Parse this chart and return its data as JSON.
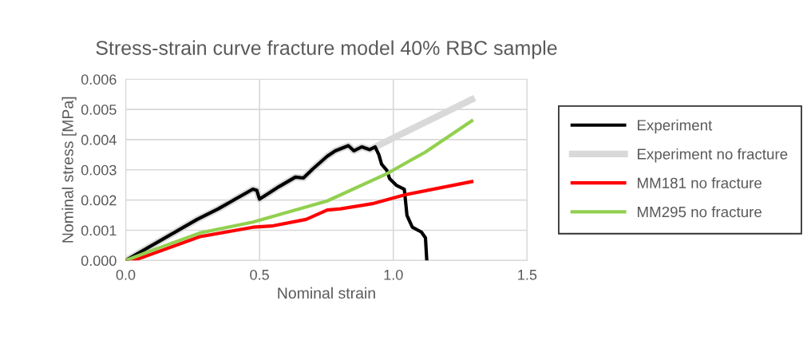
{
  "chart_data": {
    "type": "line",
    "title": "Stress-strain curve fracture model 40% RBC sample",
    "xlabel": "Nominal strain",
    "ylabel": "Nominal stress [MPa]",
    "xlim": [
      0,
      1.5
    ],
    "xticks": [
      {
        "value": 0,
        "label": "0.0"
      },
      0.5,
      {
        "value": 1,
        "label": "1.0"
      },
      1.5
    ],
    "ylim": [
      0,
      0.006
    ],
    "yticks": [
      {
        "value": 0,
        "label": "0.000"
      },
      0.001,
      0.002,
      0.003,
      0.004,
      0.005,
      0.006
    ],
    "grid": true,
    "legend": "right",
    "marker": "none",
    "line_style": "solid",
    "series": [
      {
        "name": "Experiment no fracture",
        "color": "#d9d9d9",
        "x": [
          0,
          0.267,
          0.346,
          0.475,
          0.49,
          0.5,
          0.574,
          0.634,
          0.664,
          0.698,
          0.753,
          0.783,
          0.832,
          0.853,
          0.882,
          0.912,
          1.1,
          1.293
        ],
        "values": [
          0,
          0.00136,
          0.00171,
          0.00236,
          0.00232,
          0.00203,
          0.00245,
          0.00276,
          0.00273,
          0.00302,
          0.00345,
          0.00363,
          0.0038,
          0.00363,
          0.00376,
          0.00367,
          0.00449,
          0.00533
        ]
      },
      {
        "name": "Experiment",
        "color": "#000000",
        "x": [
          0,
          0.267,
          0.346,
          0.475,
          0.49,
          0.5,
          0.574,
          0.634,
          0.664,
          0.698,
          0.753,
          0.783,
          0.832,
          0.853,
          0.882,
          0.912,
          0.932,
          0.946,
          0.956,
          0.976,
          0.986,
          1.011,
          1.041,
          1.051,
          1.071,
          1.105,
          1.12,
          1.125
        ],
        "values": [
          0,
          0.00136,
          0.00171,
          0.00236,
          0.00232,
          0.00203,
          0.00245,
          0.00276,
          0.00273,
          0.00302,
          0.00345,
          0.00363,
          0.0038,
          0.00363,
          0.00376,
          0.00367,
          0.00376,
          0.0035,
          0.00319,
          0.00298,
          0.00271,
          0.00249,
          0.00236,
          0.00149,
          0.0011,
          0.00094,
          0.00075,
          0
        ]
      },
      {
        "name": "MM181 no fracture",
        "color": "#ff0000",
        "x": [
          0,
          0.03,
          0.277,
          0.475,
          0.545,
          0.674,
          0.753,
          0.803,
          0.922,
          1.041,
          1.293
        ],
        "values": [
          0,
          0,
          0.00079,
          0.0011,
          0.00114,
          0.00136,
          0.00167,
          0.00171,
          0.00188,
          0.00217,
          0.00261
        ]
      },
      {
        "name": "MM295 no fracture",
        "color": "#92d050",
        "x": [
          0,
          0.079,
          0.277,
          0.475,
          0.753,
          0.971,
          1.12,
          1.293
        ],
        "values": [
          0,
          0.00027,
          0.00091,
          0.00127,
          0.00197,
          0.00285,
          0.00359,
          0.00462
        ]
      }
    ]
  }
}
